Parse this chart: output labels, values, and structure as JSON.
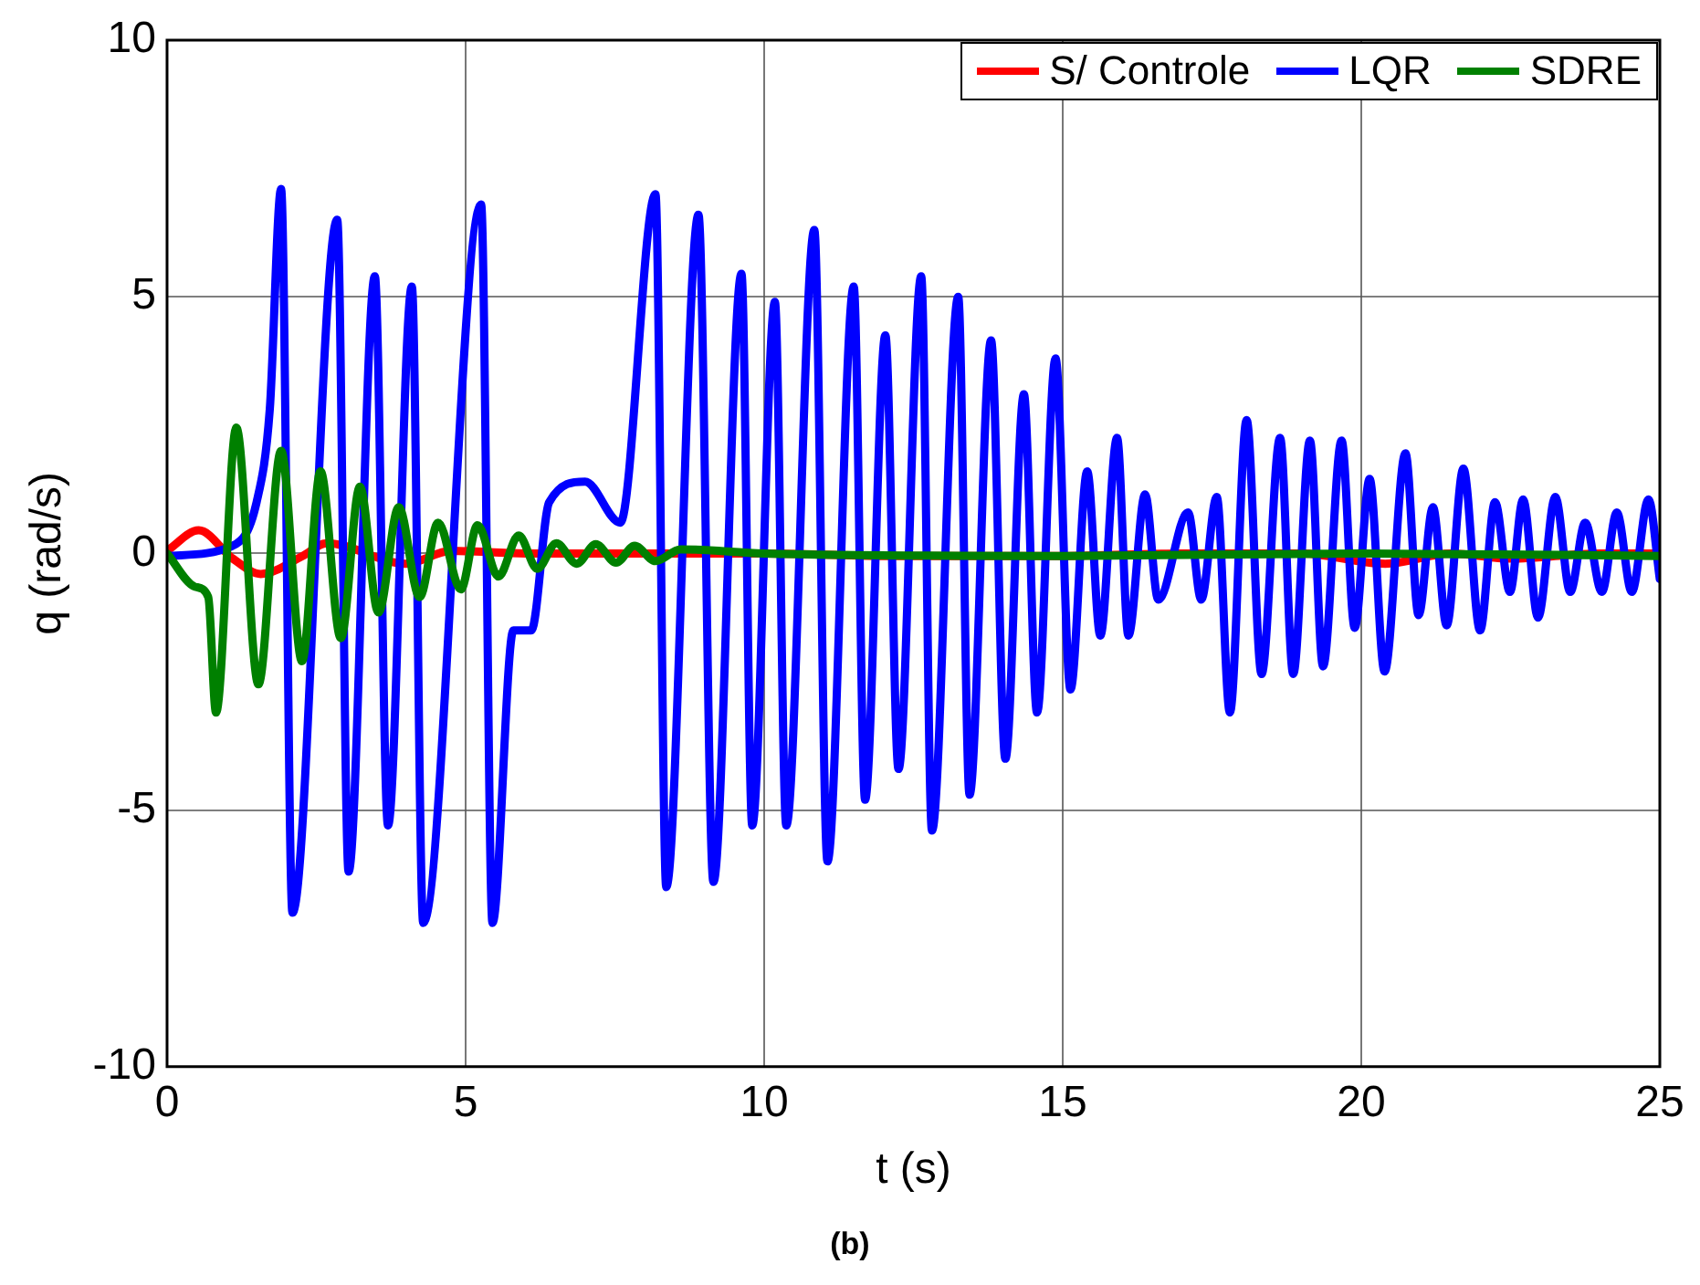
{
  "chart_data": {
    "type": "line",
    "xlabel": "t (s)",
    "ylabel": "q (rad/s)",
    "annotations": [
      "(b)"
    ],
    "xlim": [
      0,
      25
    ],
    "xticks": [
      0,
      5,
      10,
      15,
      20,
      25
    ],
    "ylim": [
      -10,
      10
    ],
    "yticks": [
      -10,
      -5,
      0,
      5,
      10
    ],
    "grid": true,
    "legend": "top right",
    "marker": "none",
    "line_style": "solid",
    "series": [
      {
        "name": "S/ Controle",
        "color": "#ff0000",
        "x": [
          0,
          0.53,
          1.1,
          1.57,
          2.27,
          2.67,
          4.0,
          4.76,
          6,
          8,
          10,
          12,
          15,
          17,
          19,
          20.4,
          21.5,
          22.5,
          24,
          25
        ],
        "values": [
          0.05,
          0.45,
          -0.1,
          -0.4,
          -0.05,
          0.2,
          -0.2,
          0.05,
          0,
          0,
          0,
          -0.05,
          -0.05,
          0,
          0,
          -0.2,
          0,
          -0.1,
          0,
          0
        ]
      },
      {
        "name": "LQR",
        "color": "#0000ff",
        "x": [
          0,
          1.1,
          1.5,
          1.72,
          1.91,
          2.1,
          2.85,
          3.04,
          3.48,
          3.7,
          4.1,
          4.29,
          5.26,
          5.45,
          5.8,
          6.1,
          6.4,
          7.0,
          7.59,
          8.18,
          8.36,
          8.9,
          9.15,
          9.62,
          9.8,
          10.18,
          10.37,
          10.84,
          11.06,
          11.5,
          11.69,
          12.03,
          12.25,
          12.63,
          12.81,
          13.25,
          13.44,
          13.8,
          14.04,
          14.35,
          14.57,
          14.88,
          15.13,
          15.41,
          15.63,
          15.91,
          16.1,
          16.38,
          16.6,
          17.1,
          17.32,
          17.58,
          17.8,
          18.08,
          18.33,
          18.64,
          18.86,
          19.14,
          19.36,
          19.67,
          19.89,
          20.14,
          20.39,
          20.74,
          20.96,
          21.2,
          21.43,
          21.71,
          21.99,
          22.24,
          22.49,
          22.71,
          22.96,
          23.25,
          23.5,
          23.75,
          24.03,
          24.28,
          24.53,
          24.81,
          25
        ],
        "values": [
          -0.05,
          0.15,
          1.0,
          2.8,
          7.1,
          -7.0,
          6.5,
          -6.2,
          5.4,
          -5.3,
          5.2,
          -7.2,
          6.8,
          -7.2,
          -1.5,
          -1.5,
          1.0,
          1.4,
          0.6,
          7.0,
          -6.5,
          6.6,
          -6.4,
          5.45,
          -5.3,
          4.9,
          -5.3,
          6.3,
          -6.0,
          5.2,
          -4.8,
          4.25,
          -4.2,
          5.4,
          -5.4,
          5.0,
          -4.7,
          4.15,
          -4.0,
          3.1,
          -3.1,
          3.8,
          -2.65,
          1.6,
          -1.6,
          2.25,
          -1.6,
          1.15,
          -0.9,
          0.8,
          -0.9,
          1.1,
          -3.1,
          2.6,
          -2.35,
          2.25,
          -2.35,
          2.2,
          -2.2,
          2.2,
          -1.45,
          1.45,
          -2.3,
          1.95,
          -1.2,
          0.9,
          -1.4,
          1.65,
          -1.5,
          1.0,
          -0.75,
          1.05,
          -1.25,
          1.1,
          -0.75,
          0.6,
          -0.75,
          0.8,
          -0.75,
          1.05,
          -0.5
        ]
      },
      {
        "name": "SDRE",
        "color": "#008000",
        "x": [
          0,
          0.47,
          0.69,
          0.82,
          1.16,
          1.53,
          1.91,
          2.26,
          2.57,
          2.91,
          3.23,
          3.54,
          3.88,
          4.23,
          4.54,
          4.92,
          5.2,
          5.55,
          5.89,
          6.2,
          6.52,
          6.86,
          7.18,
          7.52,
          7.83,
          8.18,
          8.6,
          10,
          15,
          20,
          25
        ],
        "values": [
          0,
          -0.65,
          -0.85,
          -3.1,
          2.45,
          -2.55,
          2.0,
          -2.1,
          1.6,
          -1.65,
          1.3,
          -1.15,
          0.9,
          -0.85,
          0.6,
          -0.7,
          0.55,
          -0.45,
          0.35,
          -0.3,
          0.2,
          -0.2,
          0.18,
          -0.18,
          0.15,
          -0.15,
          0.08,
          0,
          -0.05,
          0,
          -0.05
        ]
      }
    ]
  }
}
